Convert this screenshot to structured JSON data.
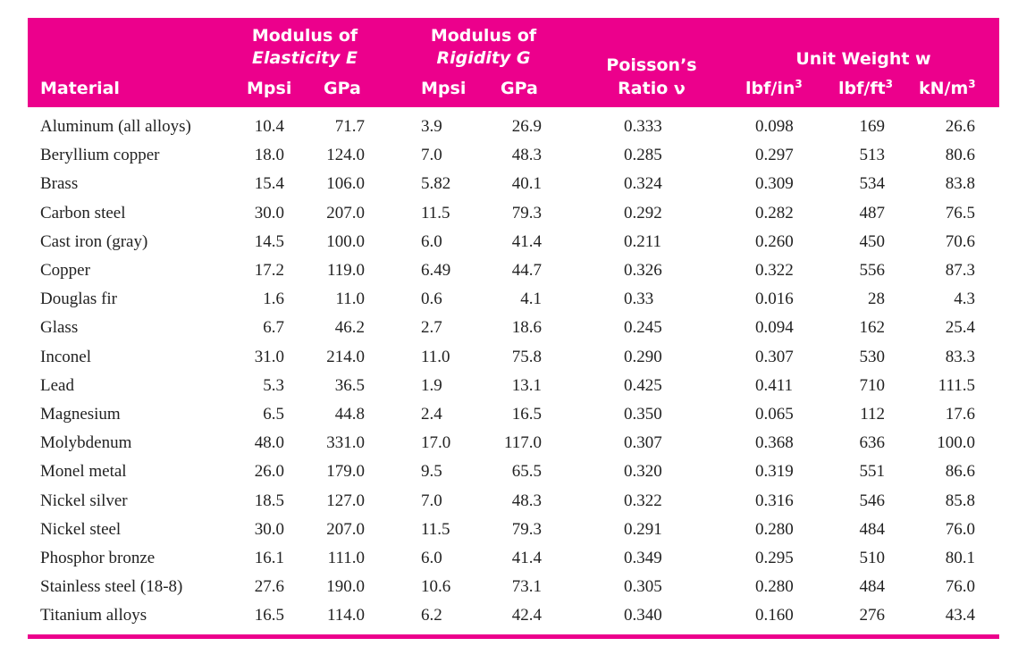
{
  "header": {
    "material": "Material",
    "modulus_elasticity_line1": "Modulus of",
    "modulus_elasticity_line2": "Elasticity E",
    "modulus_rigidity_line1": "Modulus of",
    "modulus_rigidity_line2": "Rigidity G",
    "poisson_line1": "Poisson’s",
    "poisson_line2": "Ratio ν",
    "unit_weight": "Unit Weight w",
    "e_mpsi": "Mpsi",
    "e_gpa": "GPa",
    "g_mpsi": "Mpsi",
    "g_gpa": "GPa",
    "w_lbf_in3_base": "lbf/in",
    "w_lbf_ft3_base": "lbf/ft",
    "w_kn_m3_base": "kN/m",
    "cube_exponent": "3"
  },
  "rows": [
    {
      "material": "Aluminum (all alloys)",
      "e_mpsi": "10.4",
      "e_gpa": "71.7",
      "g_mpsi": "3.9",
      "g_gpa": "26.9",
      "poisson": "0.333",
      "w_in3": "0.098",
      "w_ft3": "169",
      "w_m3": "26.6"
    },
    {
      "material": "Beryllium copper",
      "e_mpsi": "18.0",
      "e_gpa": "124.0",
      "g_mpsi": "7.0",
      "g_gpa": "48.3",
      "poisson": "0.285",
      "w_in3": "0.297",
      "w_ft3": "513",
      "w_m3": "80.6"
    },
    {
      "material": "Brass",
      "e_mpsi": "15.4",
      "e_gpa": "106.0",
      "g_mpsi": "5.82",
      "g_gpa": "40.1",
      "poisson": "0.324",
      "w_in3": "0.309",
      "w_ft3": "534",
      "w_m3": "83.8"
    },
    {
      "material": "Carbon steel",
      "e_mpsi": "30.0",
      "e_gpa": "207.0",
      "g_mpsi": "11.5",
      "g_gpa": "79.3",
      "poisson": "0.292",
      "w_in3": "0.282",
      "w_ft3": "487",
      "w_m3": "76.5"
    },
    {
      "material": "Cast iron (gray)",
      "e_mpsi": "14.5",
      "e_gpa": "100.0",
      "g_mpsi": "6.0",
      "g_gpa": "41.4",
      "poisson": "0.211",
      "w_in3": "0.260",
      "w_ft3": "450",
      "w_m3": "70.6"
    },
    {
      "material": "Copper",
      "e_mpsi": "17.2",
      "e_gpa": "119.0",
      "g_mpsi": "6.49",
      "g_gpa": "44.7",
      "poisson": "0.326",
      "w_in3": "0.322",
      "w_ft3": "556",
      "w_m3": "87.3"
    },
    {
      "material": "Douglas fir",
      "e_mpsi": "1.6",
      "e_gpa": "11.0",
      "g_mpsi": "0.6",
      "g_gpa": "4.1",
      "poisson": "0.33",
      "w_in3": "0.016",
      "w_ft3": "28",
      "w_m3": "4.3"
    },
    {
      "material": "Glass",
      "e_mpsi": "6.7",
      "e_gpa": "46.2",
      "g_mpsi": "2.7",
      "g_gpa": "18.6",
      "poisson": "0.245",
      "w_in3": "0.094",
      "w_ft3": "162",
      "w_m3": "25.4"
    },
    {
      "material": "Inconel",
      "e_mpsi": "31.0",
      "e_gpa": "214.0",
      "g_mpsi": "11.0",
      "g_gpa": "75.8",
      "poisson": "0.290",
      "w_in3": "0.307",
      "w_ft3": "530",
      "w_m3": "83.3"
    },
    {
      "material": "Lead",
      "e_mpsi": "5.3",
      "e_gpa": "36.5",
      "g_mpsi": "1.9",
      "g_gpa": "13.1",
      "poisson": "0.425",
      "w_in3": "0.411",
      "w_ft3": "710",
      "w_m3": "111.5"
    },
    {
      "material": "Magnesium",
      "e_mpsi": "6.5",
      "e_gpa": "44.8",
      "g_mpsi": "2.4",
      "g_gpa": "16.5",
      "poisson": "0.350",
      "w_in3": "0.065",
      "w_ft3": "112",
      "w_m3": "17.6"
    },
    {
      "material": "Molybdenum",
      "e_mpsi": "48.0",
      "e_gpa": "331.0",
      "g_mpsi": "17.0",
      "g_gpa": "117.0",
      "poisson": "0.307",
      "w_in3": "0.368",
      "w_ft3": "636",
      "w_m3": "100.0"
    },
    {
      "material": "Monel metal",
      "e_mpsi": "26.0",
      "e_gpa": "179.0",
      "g_mpsi": "9.5",
      "g_gpa": "65.5",
      "poisson": "0.320",
      "w_in3": "0.319",
      "w_ft3": "551",
      "w_m3": "86.6"
    },
    {
      "material": "Nickel silver",
      "e_mpsi": "18.5",
      "e_gpa": "127.0",
      "g_mpsi": "7.0",
      "g_gpa": "48.3",
      "poisson": "0.322",
      "w_in3": "0.316",
      "w_ft3": "546",
      "w_m3": "85.8"
    },
    {
      "material": "Nickel steel",
      "e_mpsi": "30.0",
      "e_gpa": "207.0",
      "g_mpsi": "11.5",
      "g_gpa": "79.3",
      "poisson": "0.291",
      "w_in3": "0.280",
      "w_ft3": "484",
      "w_m3": "76.0"
    },
    {
      "material": "Phosphor bronze",
      "e_mpsi": "16.1",
      "e_gpa": "111.0",
      "g_mpsi": "6.0",
      "g_gpa": "41.4",
      "poisson": "0.349",
      "w_in3": "0.295",
      "w_ft3": "510",
      "w_m3": "80.1"
    },
    {
      "material": "Stainless steel (18-8)",
      "e_mpsi": "27.6",
      "e_gpa": "190.0",
      "g_mpsi": "10.6",
      "g_gpa": "73.1",
      "poisson": "0.305",
      "w_in3": "0.280",
      "w_ft3": "484",
      "w_m3": "76.0"
    },
    {
      "material": "Titanium alloys",
      "e_mpsi": "16.5",
      "e_gpa": "114.0",
      "g_mpsi": "6.2",
      "g_gpa": "42.4",
      "poisson": "0.340",
      "w_in3": "0.160",
      "w_ft3": "276",
      "w_m3": "43.4"
    }
  ],
  "colors": {
    "accent": "#ec008c",
    "header_text": "#ffffff",
    "body_text": "#222222"
  }
}
